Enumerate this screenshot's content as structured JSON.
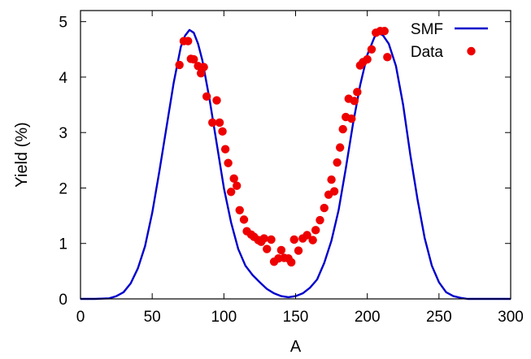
{
  "chart_data": {
    "type": "line",
    "title": "",
    "xlabel": "A",
    "ylabel": "Yield (%)",
    "xlim": [
      0,
      300
    ],
    "ylim": [
      0,
      5.2
    ],
    "x_ticks": [
      0,
      50,
      100,
      150,
      200,
      250,
      300
    ],
    "y_ticks": [
      0,
      1,
      2,
      3,
      4,
      5
    ],
    "grid": false,
    "legend": {
      "placement": "top-right"
    },
    "series": [
      {
        "name": "SMF",
        "type": "line",
        "color": "#0000cc",
        "x": [
          0,
          10,
          20,
          25,
          30,
          35,
          40,
          45,
          50,
          55,
          60,
          65,
          70,
          73,
          76,
          79,
          82,
          85,
          90,
          95,
          100,
          105,
          110,
          115,
          120,
          125,
          130,
          135,
          140,
          145,
          150,
          155,
          160,
          165,
          170,
          175,
          180,
          185,
          190,
          195,
          200,
          205,
          208,
          211,
          215,
          220,
          225,
          230,
          235,
          240,
          245,
          250,
          255,
          260,
          265,
          270,
          280,
          290,
          300
        ],
        "y": [
          0.0,
          0.0,
          0.01,
          0.05,
          0.12,
          0.28,
          0.55,
          0.95,
          1.55,
          2.3,
          3.1,
          3.9,
          4.55,
          4.75,
          4.85,
          4.8,
          4.6,
          4.3,
          3.6,
          2.8,
          2.0,
          1.38,
          0.9,
          0.6,
          0.43,
          0.3,
          0.18,
          0.1,
          0.05,
          0.03,
          0.05,
          0.1,
          0.2,
          0.35,
          0.65,
          1.05,
          1.6,
          2.35,
          3.15,
          3.85,
          4.4,
          4.72,
          4.8,
          4.75,
          4.6,
          4.2,
          3.5,
          2.6,
          1.8,
          1.1,
          0.6,
          0.3,
          0.12,
          0.05,
          0.02,
          0.0,
          0.0,
          0.0,
          0.0
        ]
      },
      {
        "name": "Data",
        "type": "scatter",
        "color": "#ee0000",
        "x": [
          69,
          72,
          75,
          77,
          79,
          82,
          84,
          86,
          88,
          92,
          95,
          97,
          99,
          101,
          103,
          105,
          107,
          109,
          111,
          114,
          116,
          119,
          121,
          124,
          126,
          128,
          130,
          133,
          135,
          138,
          140,
          142,
          145,
          147,
          149,
          152,
          155,
          158,
          162,
          164,
          167,
          170,
          173,
          175,
          177,
          179,
          181,
          183,
          185,
          187,
          189,
          191,
          193,
          195,
          197,
          200,
          203,
          206,
          209,
          212,
          214
        ],
        "y": [
          4.22,
          4.65,
          4.65,
          4.33,
          4.32,
          4.2,
          4.07,
          4.18,
          3.65,
          3.18,
          3.58,
          3.18,
          3.02,
          2.7,
          2.45,
          1.93,
          2.17,
          2.04,
          1.6,
          1.43,
          1.22,
          1.16,
          1.12,
          1.06,
          1.03,
          1.09,
          0.9,
          1.07,
          0.67,
          0.73,
          0.88,
          0.74,
          0.73,
          0.66,
          1.07,
          0.87,
          1.09,
          1.15,
          1.06,
          1.24,
          1.42,
          1.64,
          1.88,
          2.15,
          1.94,
          2.46,
          2.73,
          3.06,
          3.28,
          3.61,
          3.25,
          3.57,
          3.73,
          4.21,
          4.27,
          4.32,
          4.5,
          4.8,
          4.83,
          4.83,
          4.36
        ]
      }
    ]
  },
  "colors": {
    "axis": "#000000",
    "smf_line": "#0000cc",
    "data_points": "#ee0000"
  }
}
